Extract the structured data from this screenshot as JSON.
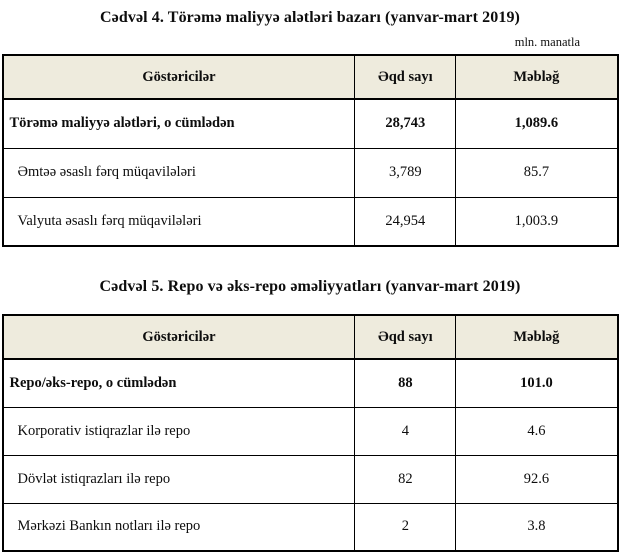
{
  "colors": {
    "header_bg": "#eeebdd",
    "border": "#000000"
  },
  "table4": {
    "title": "Cədvəl 4. Törəmə maliyyə alətləri bazarı (yanvar-mart 2019)",
    "unit_note": "mln. manatla",
    "columns": [
      "Göstəricilər",
      "Əqd sayı",
      "Məbləğ"
    ],
    "rows": [
      {
        "label": "Törəmə maliyyə alətləri, o cümlədən",
        "deals": "28,743",
        "amount": "1,089.6"
      },
      {
        "label": "Əmtəə əsaslı fərq müqavilələri",
        "deals": "3,789",
        "amount": "85.7"
      },
      {
        "label": "Valyuta əsaslı fərq müqavilələri",
        "deals": "24,954",
        "amount": "1,003.9"
      }
    ]
  },
  "table5": {
    "title": "Cədvəl 5. Repo və əks-repo əməliyyatları (yanvar-mart 2019)",
    "columns": [
      "Göstəricilər",
      "Əqd sayı",
      "Məbləğ"
    ],
    "rows": [
      {
        "label": "Repo/əks-repo, o cümlədən",
        "deals": "88",
        "amount": "101.0"
      },
      {
        "label": "Korporativ istiqrazlar ilə repo",
        "deals": "4",
        "amount": "4.6"
      },
      {
        "label": "Dövlət istiqrazları ilə repo",
        "deals": "82",
        "amount": "92.6"
      },
      {
        "label": "Mərkəzi Bankın notları ilə repo",
        "deals": "2",
        "amount": "3.8"
      }
    ]
  }
}
